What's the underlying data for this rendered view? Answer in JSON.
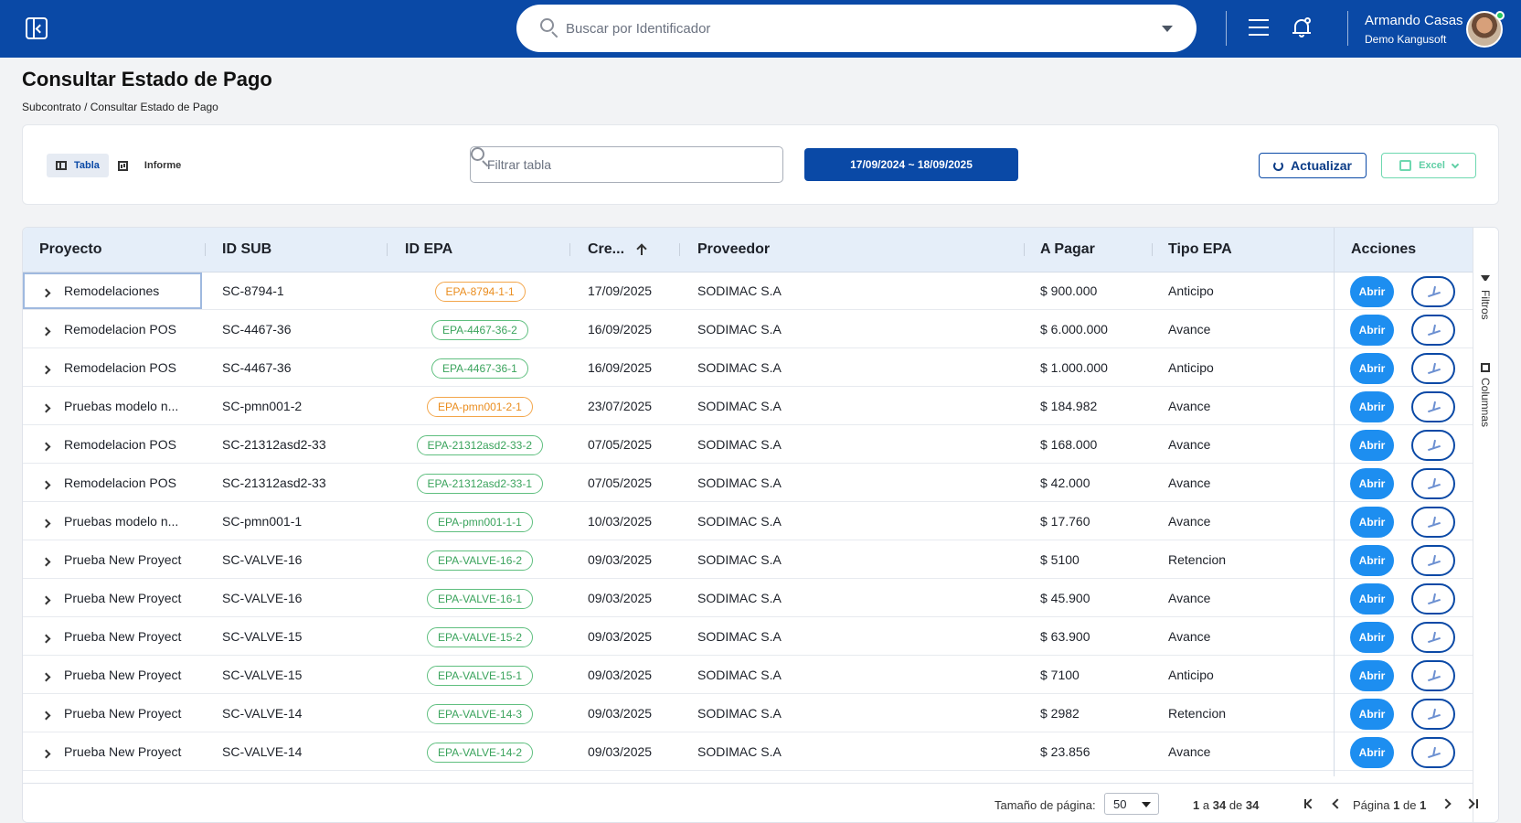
{
  "topbar": {
    "search_placeholder": "Buscar por Identificador",
    "user_name": "Armando Casas",
    "user_org": "Demo Kangusoft"
  },
  "page": {
    "title": "Consultar Estado de Pago",
    "breadcrumb_parent": "Subcontrato",
    "breadcrumb_sep": "/",
    "breadcrumb_current": "Consultar Estado de Pago"
  },
  "toolbar": {
    "view_table": "Tabla",
    "view_report": "Informe",
    "filter_placeholder": "Filtrar tabla",
    "date_range": "17/09/2024 ~ 18/09/2025",
    "refresh_label": "Actualizar",
    "excel_label": "Excel"
  },
  "table": {
    "columns": {
      "proyecto": "Proyecto",
      "id_sub": "ID SUB",
      "id_epa": "ID EPA",
      "creado": "Cre...",
      "proveedor": "Proveedor",
      "a_pagar": "A Pagar",
      "tipo_epa": "Tipo EPA",
      "acciones": "Acciones"
    },
    "open_label": "Abrir",
    "rows": [
      {
        "proyecto": "Remodelaciones",
        "id_sub": "SC-8794-1",
        "id_epa": "EPA-8794-1-1",
        "status": "orange",
        "fecha": "17/09/2025",
        "proveedor": "SODIMAC S.A",
        "a_pagar": "$ 900.000",
        "tipo": "Anticipo"
      },
      {
        "proyecto": "Remodelacion POS",
        "id_sub": "SC-4467-36",
        "id_epa": "EPA-4467-36-2",
        "status": "green",
        "fecha": "16/09/2025",
        "proveedor": "SODIMAC S.A",
        "a_pagar": "$ 6.000.000",
        "tipo": "Avance"
      },
      {
        "proyecto": "Remodelacion POS",
        "id_sub": "SC-4467-36",
        "id_epa": "EPA-4467-36-1",
        "status": "green",
        "fecha": "16/09/2025",
        "proveedor": "SODIMAC S.A",
        "a_pagar": "$ 1.000.000",
        "tipo": "Anticipo"
      },
      {
        "proyecto": "Pruebas modelo n...",
        "id_sub": "SC-pmn001-2",
        "id_epa": "EPA-pmn001-2-1",
        "status": "orange",
        "fecha": "23/07/2025",
        "proveedor": "SODIMAC S.A",
        "a_pagar": "$ 184.982",
        "tipo": "Avance"
      },
      {
        "proyecto": "Remodelacion POS",
        "id_sub": "SC-21312asd2-33",
        "id_epa": "EPA-21312asd2-33-2",
        "status": "green",
        "fecha": "07/05/2025",
        "proveedor": "SODIMAC S.A",
        "a_pagar": "$ 168.000",
        "tipo": "Avance"
      },
      {
        "proyecto": "Remodelacion POS",
        "id_sub": "SC-21312asd2-33",
        "id_epa": "EPA-21312asd2-33-1",
        "status": "green",
        "fecha": "07/05/2025",
        "proveedor": "SODIMAC S.A",
        "a_pagar": "$ 42.000",
        "tipo": "Avance"
      },
      {
        "proyecto": "Pruebas modelo n...",
        "id_sub": "SC-pmn001-1",
        "id_epa": "EPA-pmn001-1-1",
        "status": "green",
        "fecha": "10/03/2025",
        "proveedor": "SODIMAC S.A",
        "a_pagar": "$ 17.760",
        "tipo": "Avance"
      },
      {
        "proyecto": "Prueba New Proyect",
        "id_sub": "SC-VALVE-16",
        "id_epa": "EPA-VALVE-16-2",
        "status": "green",
        "fecha": "09/03/2025",
        "proveedor": "SODIMAC S.A",
        "a_pagar": "$ 5100",
        "tipo": "Retencion"
      },
      {
        "proyecto": "Prueba New Proyect",
        "id_sub": "SC-VALVE-16",
        "id_epa": "EPA-VALVE-16-1",
        "status": "green",
        "fecha": "09/03/2025",
        "proveedor": "SODIMAC S.A",
        "a_pagar": "$ 45.900",
        "tipo": "Avance"
      },
      {
        "proyecto": "Prueba New Proyect",
        "id_sub": "SC-VALVE-15",
        "id_epa": "EPA-VALVE-15-2",
        "status": "green",
        "fecha": "09/03/2025",
        "proveedor": "SODIMAC S.A",
        "a_pagar": "$ 63.900",
        "tipo": "Avance"
      },
      {
        "proyecto": "Prueba New Proyect",
        "id_sub": "SC-VALVE-15",
        "id_epa": "EPA-VALVE-15-1",
        "status": "green",
        "fecha": "09/03/2025",
        "proveedor": "SODIMAC S.A",
        "a_pagar": "$ 7100",
        "tipo": "Anticipo"
      },
      {
        "proyecto": "Prueba New Proyect",
        "id_sub": "SC-VALVE-14",
        "id_epa": "EPA-VALVE-14-3",
        "status": "green",
        "fecha": "09/03/2025",
        "proveedor": "SODIMAC S.A",
        "a_pagar": "$ 2982",
        "tipo": "Retencion"
      },
      {
        "proyecto": "Prueba New Proyect",
        "id_sub": "SC-VALVE-14",
        "id_epa": "EPA-VALVE-14-2",
        "status": "green",
        "fecha": "09/03/2025",
        "proveedor": "SODIMAC S.A",
        "a_pagar": "$ 23.856",
        "tipo": "Avance"
      }
    ]
  },
  "side_panel": {
    "filters": "Filtros",
    "columns": "Columnas"
  },
  "pagination": {
    "page_size_label": "Tamaño de página:",
    "page_size": "50",
    "range_from": "1",
    "range_a": "a",
    "range_to": "34",
    "range_de": "de",
    "range_total": "34",
    "page_label": "Página",
    "page_current": "1",
    "page_de": "de",
    "page_total": "1"
  },
  "colors": {
    "brand": "#0a49a6",
    "open_button": "#1d8ef0",
    "badge_green": "#3aa35c",
    "badge_orange": "#ea8d1f",
    "excel": "#5fcfa5"
  }
}
